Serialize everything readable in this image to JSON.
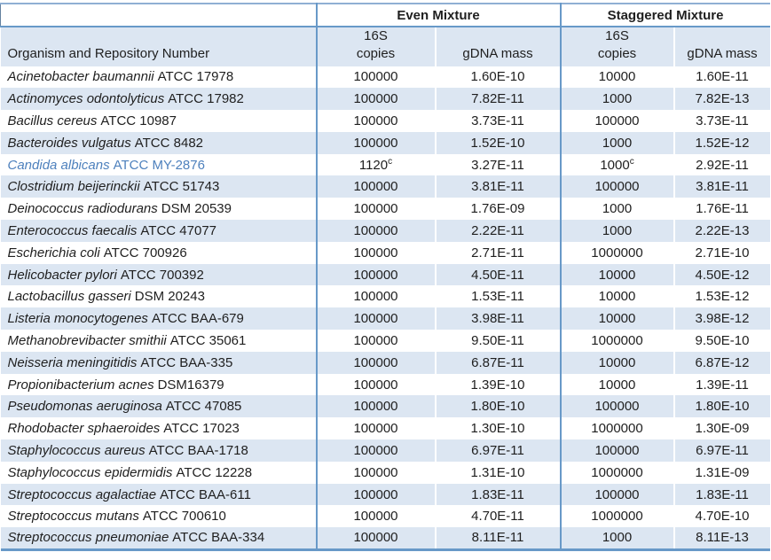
{
  "colors": {
    "border_blue": "#6899C8",
    "top_border": "#8FAFD4",
    "row_stripe": "#DCE6F2",
    "accent_text": "#4E81BD"
  },
  "table": {
    "group_headers": {
      "even": "Even Mixture",
      "staggered": "Staggered Mixture"
    },
    "column_headers": {
      "organism": "Organism and Repository Number",
      "copies_line1": "16S",
      "copies_line2": "copies",
      "gdna": "gDNA mass"
    },
    "rows": [
      {
        "organism": "Acinetobacter baumannii",
        "repository": "ATCC 17978",
        "even_copies": "100000",
        "even_note": "",
        "even_gdna": "1.60E-10",
        "stag_copies": "10000",
        "stag_note": "",
        "stag_gdna": "1.60E-11",
        "accent": false
      },
      {
        "organism": "Actinomyces odontolyticus",
        "repository": "ATCC 17982",
        "even_copies": "100000",
        "even_note": "",
        "even_gdna": "7.82E-11",
        "stag_copies": "1000",
        "stag_note": "",
        "stag_gdna": "7.82E-13",
        "accent": false
      },
      {
        "organism": "Bacillus cereus",
        "repository": "ATCC 10987",
        "even_copies": "100000",
        "even_note": "",
        "even_gdna": "3.73E-11",
        "stag_copies": "100000",
        "stag_note": "",
        "stag_gdna": "3.73E-11",
        "accent": false
      },
      {
        "organism": "Bacteroides vulgatus",
        "repository": "ATCC 8482",
        "even_copies": "100000",
        "even_note": "",
        "even_gdna": "1.52E-10",
        "stag_copies": "1000",
        "stag_note": "",
        "stag_gdna": "1.52E-12",
        "accent": false
      },
      {
        "organism": "Candida albicans",
        "repository": "ATCC MY-2876",
        "even_copies": "1120",
        "even_note": "c",
        "even_gdna": "3.27E-11",
        "stag_copies": "1000",
        "stag_note": "c",
        "stag_gdna": "2.92E-11",
        "accent": true
      },
      {
        "organism": "Clostridium beijerinckii",
        "repository": "ATCC 51743",
        "even_copies": "100000",
        "even_note": "",
        "even_gdna": "3.81E-11",
        "stag_copies": "100000",
        "stag_note": "",
        "stag_gdna": "3.81E-11",
        "accent": false
      },
      {
        "organism": "Deinococcus radiodurans",
        "repository": "DSM 20539",
        "even_copies": "100000",
        "even_note": "",
        "even_gdna": "1.76E-09",
        "stag_copies": "1000",
        "stag_note": "",
        "stag_gdna": "1.76E-11",
        "accent": false
      },
      {
        "organism": "Enterococcus faecalis",
        "repository": "ATCC 47077",
        "even_copies": "100000",
        "even_note": "",
        "even_gdna": "2.22E-11",
        "stag_copies": "1000",
        "stag_note": "",
        "stag_gdna": "2.22E-13",
        "accent": false
      },
      {
        "organism": "Escherichia coli",
        "repository": "ATCC 700926",
        "even_copies": "100000",
        "even_note": "",
        "even_gdna": "2.71E-11",
        "stag_copies": "1000000",
        "stag_note": "",
        "stag_gdna": "2.71E-10",
        "accent": false
      },
      {
        "organism": "Helicobacter pylori",
        "repository": "ATCC 700392",
        "even_copies": "100000",
        "even_note": "",
        "even_gdna": "4.50E-11",
        "stag_copies": "10000",
        "stag_note": "",
        "stag_gdna": "4.50E-12",
        "accent": false
      },
      {
        "organism": "Lactobacillus gasseri",
        "repository": "DSM 20243",
        "even_copies": "100000",
        "even_note": "",
        "even_gdna": "1.53E-11",
        "stag_copies": "10000",
        "stag_note": "",
        "stag_gdna": "1.53E-12",
        "accent": false
      },
      {
        "organism": "Listeria monocytogenes",
        "repository": "ATCC BAA-679",
        "even_copies": "100000",
        "even_note": "",
        "even_gdna": "3.98E-11",
        "stag_copies": "10000",
        "stag_note": "",
        "stag_gdna": "3.98E-12",
        "accent": false
      },
      {
        "organism": "Methanobrevibacter smithii",
        "repository": "ATCC 35061",
        "even_copies": "100000",
        "even_note": "",
        "even_gdna": "9.50E-11",
        "stag_copies": "1000000",
        "stag_note": "",
        "stag_gdna": "9.50E-10",
        "accent": false
      },
      {
        "organism": "Neisseria meningitidis",
        "repository": "ATCC BAA-335",
        "even_copies": "100000",
        "even_note": "",
        "even_gdna": "6.87E-11",
        "stag_copies": "10000",
        "stag_note": "",
        "stag_gdna": "6.87E-12",
        "accent": false
      },
      {
        "organism": "Propionibacterium acnes",
        "repository": "DSM16379",
        "even_copies": "100000",
        "even_note": "",
        "even_gdna": "1.39E-10",
        "stag_copies": "10000",
        "stag_note": "",
        "stag_gdna": "1.39E-11",
        "accent": false
      },
      {
        "organism": "Pseudomonas aeruginosa",
        "repository": "ATCC 47085",
        "even_copies": "100000",
        "even_note": "",
        "even_gdna": "1.80E-10",
        "stag_copies": "100000",
        "stag_note": "",
        "stag_gdna": "1.80E-10",
        "accent": false
      },
      {
        "organism": "Rhodobacter sphaeroides",
        "repository": "ATCC 17023",
        "even_copies": "100000",
        "even_note": "",
        "even_gdna": "1.30E-10",
        "stag_copies": "1000000",
        "stag_note": "",
        "stag_gdna": "1.30E-09",
        "accent": false
      },
      {
        "organism": "Staphylococcus aureus",
        "repository": "ATCC BAA-1718",
        "even_copies": "100000",
        "even_note": "",
        "even_gdna": "6.97E-11",
        "stag_copies": "100000",
        "stag_note": "",
        "stag_gdna": "6.97E-11",
        "accent": false
      },
      {
        "organism": "Staphylococcus epidermidis",
        "repository": "ATCC 12228",
        "even_copies": "100000",
        "even_note": "",
        "even_gdna": "1.31E-10",
        "stag_copies": "1000000",
        "stag_note": "",
        "stag_gdna": "1.31E-09",
        "accent": false
      },
      {
        "organism": "Streptococcus agalactiae",
        "repository": "ATCC BAA-611",
        "even_copies": "100000",
        "even_note": "",
        "even_gdna": "1.83E-11",
        "stag_copies": "100000",
        "stag_note": "",
        "stag_gdna": "1.83E-11",
        "accent": false
      },
      {
        "organism": "Streptococcus mutans",
        "repository": "ATCC 700610",
        "even_copies": "100000",
        "even_note": "",
        "even_gdna": "4.70E-11",
        "stag_copies": "1000000",
        "stag_note": "",
        "stag_gdna": "4.70E-10",
        "accent": false
      },
      {
        "organism": "Streptococcus pneumoniae",
        "repository": "ATCC BAA-334",
        "even_copies": "100000",
        "even_note": "",
        "even_gdna": "8.11E-11",
        "stag_copies": "1000",
        "stag_note": "",
        "stag_gdna": "8.11E-13",
        "accent": false
      }
    ]
  }
}
